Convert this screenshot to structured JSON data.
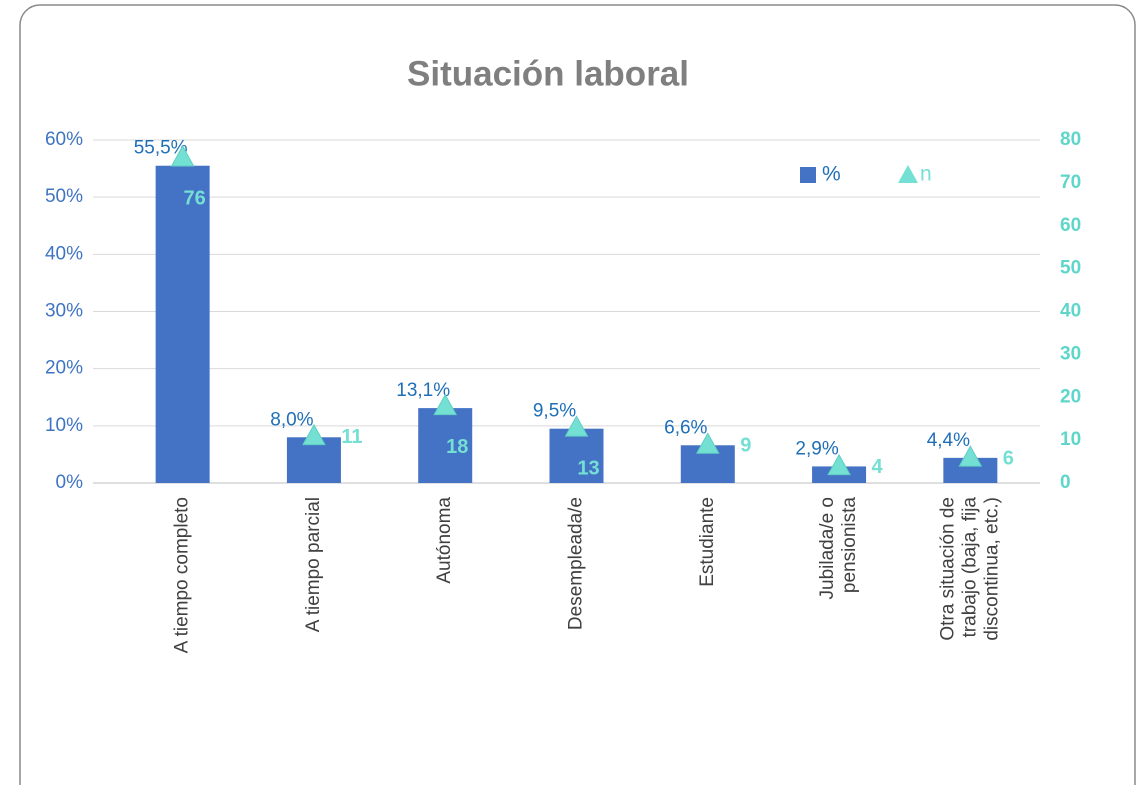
{
  "chart_data": {
    "type": "bar",
    "title": "Situación laboral",
    "categories": [
      "A tiempo completo",
      "A tiempo parcial",
      "Autónoma",
      "Desempleada/e",
      "Estudiante",
      "Jubilada/e o\npensionista",
      "Otra situación de\ntrabajo (baja, fija\ndiscontinua, etc.)"
    ],
    "series": [
      {
        "name": "%",
        "type": "bar",
        "color": "#4472c4",
        "values": [
          55.5,
          8.0,
          13.1,
          9.5,
          6.6,
          2.9,
          4.4
        ],
        "value_labels": [
          "55,5%",
          "8,0%",
          "13,1%",
          "9,5%",
          "6,6%",
          "2,9%",
          "4,4%"
        ]
      },
      {
        "name": "n",
        "type": "marker",
        "axis": "y2",
        "color": "#74dfd3",
        "values": [
          76,
          11,
          18,
          13,
          9,
          4,
          6
        ]
      }
    ],
    "ylim": [
      0,
      60
    ],
    "yticks": [
      {
        "value": 0,
        "label": "0%"
      },
      {
        "value": 10,
        "label": "10%"
      },
      {
        "value": 20,
        "label": "20%"
      },
      {
        "value": 30,
        "label": "30%"
      },
      {
        "value": 40,
        "label": "40%"
      },
      {
        "value": 50,
        "label": "50%"
      },
      {
        "value": 60,
        "label": "60%"
      }
    ],
    "y2lim": [
      0,
      80
    ],
    "y2ticks": [
      0,
      10,
      20,
      30,
      40,
      50,
      60,
      70,
      80
    ],
    "grid": true,
    "legend": "top-right"
  }
}
